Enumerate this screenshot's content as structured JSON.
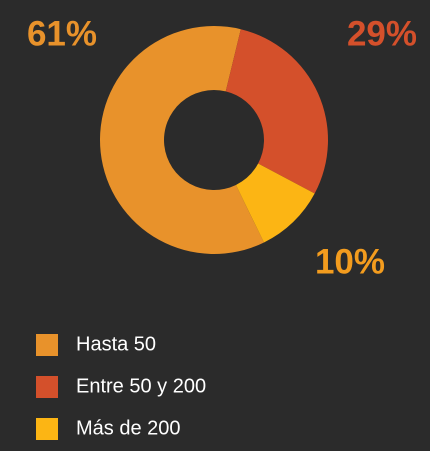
{
  "chart_data": {
    "type": "pie",
    "categories": [
      "Hasta 50",
      "Entre 50 y 200",
      "Más de 200"
    ],
    "values": [
      61,
      29,
      10
    ],
    "value_labels": [
      "61%",
      "29%",
      "10%"
    ],
    "colors": [
      "#e8922b",
      "#d4502b",
      "#fcb514"
    ],
    "legend": "bottom-left"
  }
}
